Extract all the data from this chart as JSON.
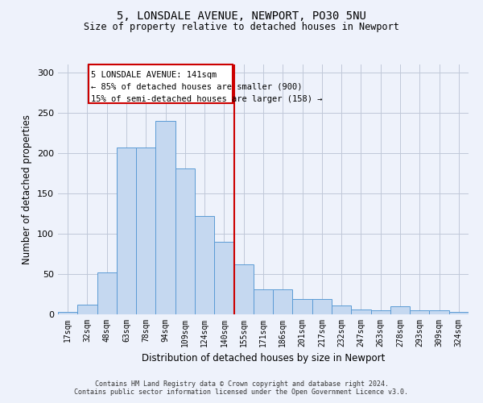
{
  "title": "5, LONSDALE AVENUE, NEWPORT, PO30 5NU",
  "subtitle": "Size of property relative to detached houses in Newport",
  "xlabel": "Distribution of detached houses by size in Newport",
  "ylabel": "Number of detached properties",
  "footnote1": "Contains HM Land Registry data © Crown copyright and database right 2024.",
  "footnote2": "Contains public sector information licensed under the Open Government Licence v3.0.",
  "categories": [
    "17sqm",
    "32sqm",
    "48sqm",
    "63sqm",
    "78sqm",
    "94sqm",
    "109sqm",
    "124sqm",
    "140sqm",
    "155sqm",
    "171sqm",
    "186sqm",
    "201sqm",
    "217sqm",
    "232sqm",
    "247sqm",
    "263sqm",
    "278sqm",
    "293sqm",
    "309sqm",
    "324sqm"
  ],
  "values": [
    3,
    12,
    52,
    207,
    207,
    240,
    181,
    122,
    90,
    62,
    31,
    31,
    19,
    19,
    11,
    6,
    5,
    10,
    5,
    5,
    3
  ],
  "bar_color": "#c5d8f0",
  "bar_edge_color": "#5b9bd5",
  "vline_x": 8.5,
  "vline_color": "#cc0000",
  "box_text_line1": "5 LONSDALE AVENUE: 141sqm",
  "box_text_line2": "← 85% of detached houses are smaller (900)",
  "box_text_line3": "15% of semi-detached houses are larger (158) →",
  "box_edge_color": "#cc0000",
  "ylim": [
    0,
    310
  ],
  "yticks": [
    0,
    50,
    100,
    150,
    200,
    250,
    300
  ],
  "bg_color": "#eef2fb",
  "grid_color": "#c0c8d8"
}
